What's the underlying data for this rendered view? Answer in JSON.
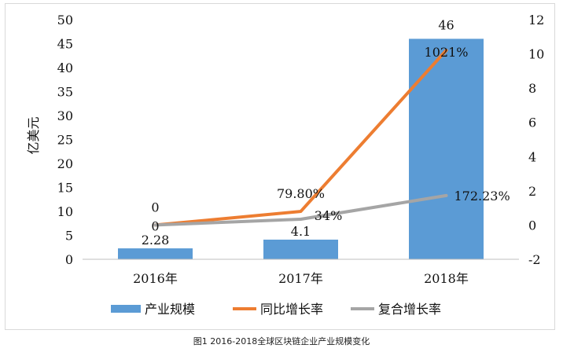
{
  "chart_data": {
    "type": "bar",
    "categories": [
      "2016年",
      "2017年",
      "2018年"
    ],
    "series": [
      {
        "name": "产业规模",
        "kind": "bar",
        "axis": "left",
        "color": "#5b9bd5",
        "values": [
          2.28,
          4.1,
          46
        ],
        "labels": [
          "2.28",
          "4.1",
          "46"
        ]
      },
      {
        "name": "同比增长率",
        "kind": "line",
        "axis": "right",
        "color": "#ed7d31",
        "values": [
          0,
          0.798,
          10.21
        ],
        "labels": [
          "0",
          "79.80%",
          "1021%"
        ]
      },
      {
        "name": "复合增长率",
        "kind": "line",
        "axis": "right",
        "color": "#a5a5a5",
        "values": [
          0,
          0.34,
          1.7223
        ],
        "labels": [
          "0",
          "34%",
          "172.23%"
        ]
      }
    ],
    "ylabel": "亿美元",
    "ylim": [
      0,
      50
    ],
    "yticks": [
      "0",
      "5",
      "10",
      "15",
      "20",
      "25",
      "30",
      "35",
      "40",
      "45",
      "50"
    ],
    "y2lim": [
      -2,
      12
    ],
    "y2ticks": [
      "-2",
      "0",
      "2",
      "4",
      "6",
      "8",
      "10",
      "12"
    ],
    "grid": false,
    "legend": "bottom"
  },
  "caption": "图1 2016-2018全球区块链企业产业规模变化"
}
